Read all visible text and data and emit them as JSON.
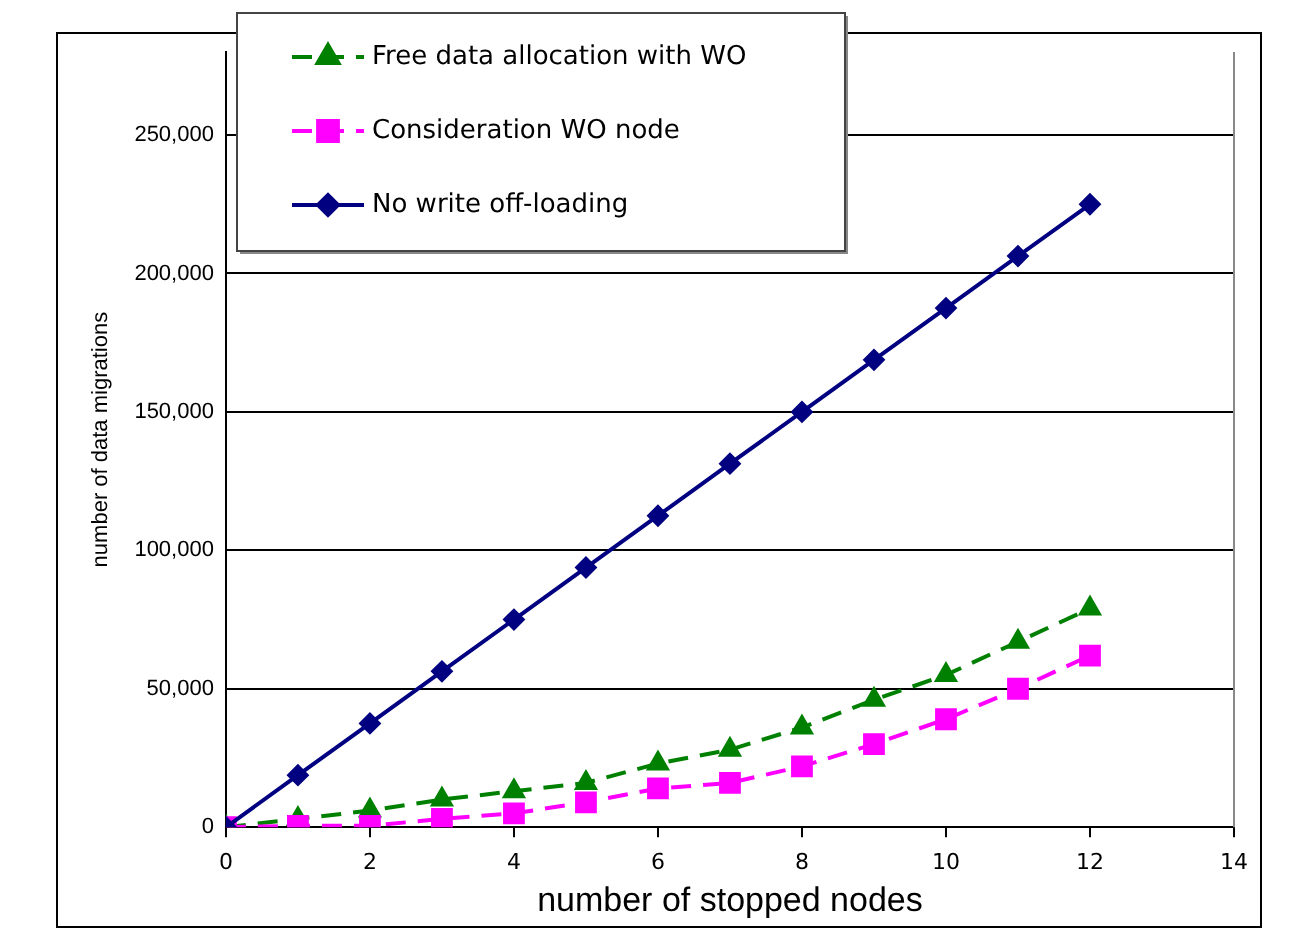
{
  "chart_data": {
    "type": "line",
    "xlabel": "number of stopped nodes",
    "ylabel": "number of data migrations",
    "x": [
      0,
      1,
      2,
      3,
      4,
      5,
      6,
      7,
      8,
      9,
      10,
      11,
      12
    ],
    "xlim": [
      0,
      14
    ],
    "xticks": [
      0,
      2,
      4,
      6,
      8,
      10,
      12,
      14
    ],
    "ylim": [
      0,
      280000
    ],
    "yticks": [
      {
        "value": 0,
        "label": "0"
      },
      {
        "value": 50000,
        "label": "50,000"
      },
      {
        "value": 100000,
        "label": "100,000"
      },
      {
        "value": 150000,
        "label": "150,000"
      },
      {
        "value": 200000,
        "label": "200,000"
      },
      {
        "value": 250000,
        "label": "250,000"
      }
    ],
    "grid": "y",
    "legend": "top left",
    "series": [
      {
        "name": "Free data allocation with WO",
        "color": "#008000",
        "marker": "triangle",
        "line_style": "dashed",
        "values": [
          0,
          3000,
          6000,
          10000,
          13000,
          16000,
          23000,
          28000,
          36000,
          46000,
          55000,
          67000,
          79000
        ]
      },
      {
        "name": "Consideration WO node",
        "color": "#ff00ff",
        "marker": "square",
        "line_style": "dashed",
        "values": [
          0,
          500,
          500,
          3000,
          5000,
          9000,
          14000,
          16000,
          22000,
          30000,
          39000,
          50000,
          62000
        ]
      },
      {
        "name": "No write off-loading",
        "color": "#000080",
        "marker": "diamond",
        "line_style": "solid",
        "values": [
          0,
          18800,
          37500,
          56300,
          75000,
          93800,
          112500,
          131300,
          150000,
          168800,
          187500,
          206300,
          225000
        ]
      }
    ]
  }
}
